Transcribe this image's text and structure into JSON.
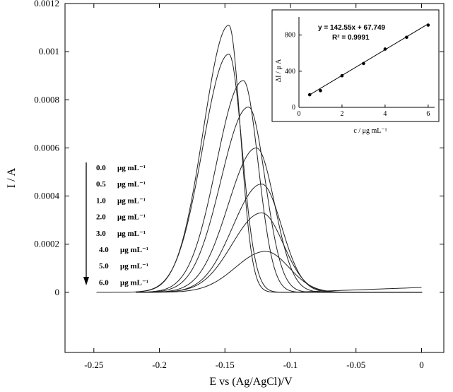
{
  "chart_data": [
    {
      "type": "line",
      "xlabel": "E vs (Ag/AgCl)/V",
      "ylabel": "I / A",
      "xlim": [
        -0.272,
        0.017
      ],
      "ylim": [
        -0.00025,
        0.0012
      ],
      "x_ticks": [
        -0.25,
        -0.2,
        -0.15,
        -0.1,
        -0.05,
        0
      ],
      "x_tick_labels": [
        "-0.25",
        "-0.2",
        "-0.15",
        "-0.1",
        "-0.05",
        "0"
      ],
      "y_ticks": [
        0,
        0.0002,
        0.0004,
        0.0006,
        0.0008,
        0.001,
        0.0012
      ],
      "y_tick_labels": [
        "0",
        "0.0002",
        "0.0004",
        "0.0006",
        "0.0008",
        "0.001",
        "0.0012"
      ],
      "grid": false,
      "legend": {
        "placement": "left",
        "entries": [
          {
            "value": "0.0",
            "unit": "μg mL⁻¹"
          },
          {
            "value": "0.5",
            "unit": "μg mL⁻¹"
          },
          {
            "value": "1.0",
            "unit": "μg mL⁻¹"
          },
          {
            "value": "2.0",
            "unit": "μg mL⁻¹"
          },
          {
            "value": "3.0",
            "unit": "μg mL⁻¹"
          },
          {
            "value": "4.0",
            "unit": "μg mL⁻¹"
          },
          {
            "value": "5.0",
            "unit": "μg mL⁻¹"
          },
          {
            "value": "6.0",
            "unit": "μg mL⁻¹"
          }
        ]
      },
      "series": [
        {
          "peak_E": -0.147,
          "peak_I": 0.00111
        },
        {
          "peak_E": -0.147,
          "peak_I": 0.00099
        },
        {
          "peak_E": -0.136,
          "peak_I": 0.00088
        },
        {
          "peak_E": -0.132,
          "peak_I": 0.00077
        },
        {
          "peak_E": -0.126,
          "peak_I": 0.0006
        },
        {
          "peak_E": -0.122,
          "peak_I": 0.00045
        },
        {
          "peak_E": -0.122,
          "peak_I": 0.00033
        },
        {
          "peak_E": -0.119,
          "peak_I": 0.00017
        }
      ]
    },
    {
      "type": "scatter",
      "xlabel": "c / μg mL⁻¹",
      "ylabel": "ΔI / μ A",
      "xlim": [
        0,
        6.3
      ],
      "ylim": [
        0,
        1000
      ],
      "x_ticks": [
        0,
        2,
        4,
        6
      ],
      "y_ticks": [
        0,
        400,
        800
      ],
      "equation": "y = 142.55x + 67.749",
      "r2": "R² = 0.9991",
      "slope": 142.55,
      "intercept": 67.749,
      "x": [
        0.5,
        1.0,
        2.0,
        3.0,
        4.0,
        5.0,
        6.0
      ],
      "y": [
        140,
        185,
        350,
        485,
        645,
        775,
        910
      ]
    }
  ]
}
